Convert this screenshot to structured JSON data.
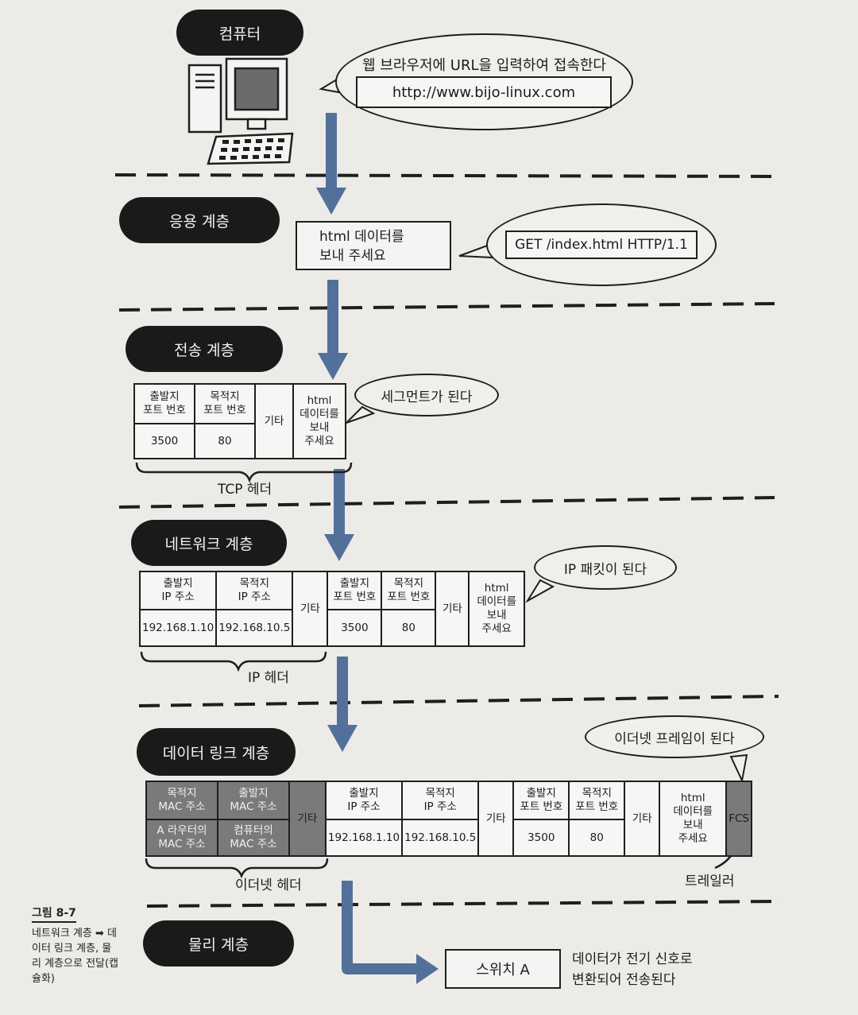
{
  "layers": {
    "computer": "컴퓨터",
    "application": "응용 계층",
    "transport": "전송 계층",
    "network": "네트워크 계층",
    "datalink": "데이터 링크 계층",
    "physical": "물리 계층"
  },
  "computer": {
    "bubble_text": "웹 브라우저에 URL을 입력하여 접속한다",
    "url": "http://www.bijo-linux.com"
  },
  "application": {
    "request_line1": "html 데이터를",
    "request_line2": "보내 주세요",
    "http_request": "GET /index.html HTTP/1.1"
  },
  "transport": {
    "bubble_text": "세그먼트가 된다",
    "src_port_label_1": "출발지",
    "src_port_label_2": "포트 번호",
    "dst_port_label_1": "목적지",
    "dst_port_label_2": "포트 번호",
    "other": "기타",
    "data_1": "html",
    "data_2": "데이터를",
    "data_3": "보내",
    "data_4": "주세요",
    "src_port": "3500",
    "dst_port": "80",
    "header_label": "TCP 헤더"
  },
  "network": {
    "bubble_text": "IP 패킷이 된다",
    "src_ip_label_1": "출발지",
    "src_ip_label_2": "IP 주소",
    "dst_ip_label_1": "목적지",
    "dst_ip_label_2": "IP 주소",
    "src_ip": "192.168.1.10",
    "dst_ip": "192.168.10.5",
    "header_label": "IP 헤더"
  },
  "datalink": {
    "bubble_text": "이더넷 프레임이 된다",
    "dst_mac_label_1": "목적지",
    "dst_mac_label_2": "MAC 주소",
    "src_mac_label_1": "출발지",
    "src_mac_label_2": "MAC 주소",
    "dst_mac_1": "A 라우터의",
    "dst_mac_2": "MAC 주소",
    "src_mac_1": "컴퓨터의",
    "src_mac_2": "MAC 주소",
    "fcs": "FCS",
    "header_label": "이더넷 헤더",
    "trailer_label": "트레일러"
  },
  "physical": {
    "switch": "스위치 A",
    "note_1": "데이터가 전기 신호로",
    "note_2": "변환되어 전송된다"
  },
  "caption": {
    "figure": "그림 8-7",
    "line1": "네트워크 계층 ➡ 데",
    "line2": "이터 링크 계층, 물",
    "line3": "리 계층으로 전달(캡",
    "line4": "슐화)"
  },
  "colors": {
    "arrow": "#52709a",
    "pill": "#1a1a1a",
    "shaded_cell": "#7a7a7a"
  }
}
